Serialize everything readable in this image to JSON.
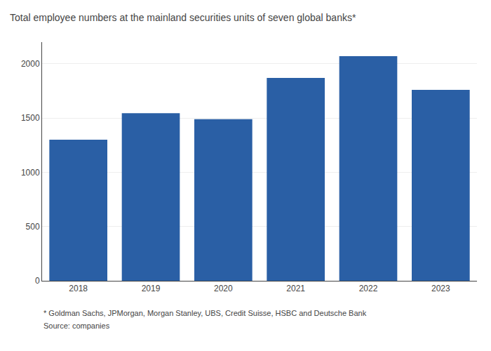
{
  "chart_data": {
    "type": "bar",
    "title": "Total employee numbers at the mainland securities units of seven global banks*",
    "categories": [
      "2018",
      "2019",
      "2020",
      "2021",
      "2022",
      "2023"
    ],
    "values": [
      1300,
      1545,
      1490,
      1870,
      2070,
      1760
    ],
    "color": "#2a5fa5",
    "ylim": [
      0,
      2200
    ],
    "yticks": [
      0,
      500,
      1000,
      1500,
      2000
    ],
    "grid": true,
    "annotations": [
      "* Goldman Sachs, JPMorgan, Morgan Stanley, UBS, Credit Suisse, HSBC and Deutsche Bank",
      "Source: companies"
    ]
  }
}
